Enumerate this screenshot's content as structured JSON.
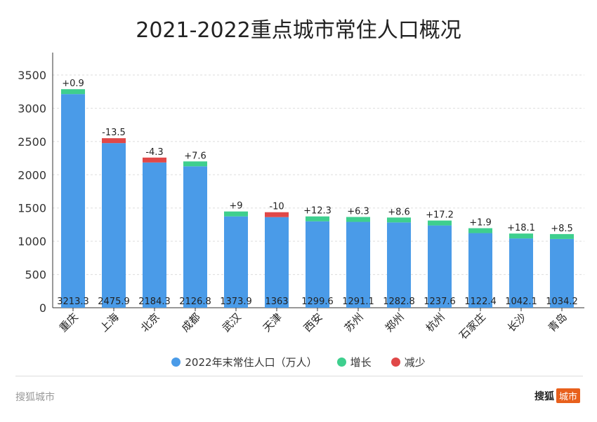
{
  "chart_data": {
    "type": "bar",
    "title": "2021-2022重点城市常住人口概况",
    "categories": [
      "重庆",
      "上海",
      "北京",
      "成都",
      "武汉",
      "天津",
      "西安",
      "苏州",
      "郑州",
      "杭州",
      "石家庄",
      "长沙",
      "青岛"
    ],
    "series": [
      {
        "name": "2022年末常住人口（万人）",
        "values": [
          3213.3,
          2475.9,
          2184.3,
          2126.8,
          1373.9,
          1363,
          1299.6,
          1291.1,
          1282.8,
          1237.6,
          1122.4,
          1042.1,
          1034.2
        ]
      },
      {
        "name": "change",
        "values": [
          0.9,
          -13.5,
          -4.3,
          7.6,
          9,
          -10,
          12.3,
          6.3,
          8.6,
          17.2,
          1.9,
          18.1,
          8.5
        ]
      }
    ],
    "change_labels": [
      "+0.9",
      "-13.5",
      "-4.3",
      "+7.6",
      "+9",
      "-10",
      "+12.3",
      "+6.3",
      "+8.6",
      "+17.2",
      "+1.9",
      "+18.1",
      "+8.5"
    ],
    "value_labels": [
      "3213.3",
      "2475.9",
      "2184.3",
      "2126.8",
      "1373.9",
      "1363",
      "1299.6",
      "1291.1",
      "1282.8",
      "1237.6",
      "1122.4",
      "1042.1",
      "1034.2"
    ],
    "yticks": [
      "0",
      "500",
      "1000",
      "1500",
      "2000",
      "2500",
      "3000",
      "3500"
    ],
    "ylim": [
      0,
      3500
    ],
    "grid": true,
    "legend": [
      {
        "label": "2022年末常住人口（万人）",
        "color": "#4a9be8"
      },
      {
        "label": "增长",
        "color": "#3ecf8e"
      },
      {
        "label": "减少",
        "color": "#e04848"
      }
    ],
    "legend_placement": "bottom"
  },
  "footer": {
    "source": "搜狐城市",
    "logo_text": "搜狐",
    "logo_tag": "城市"
  }
}
